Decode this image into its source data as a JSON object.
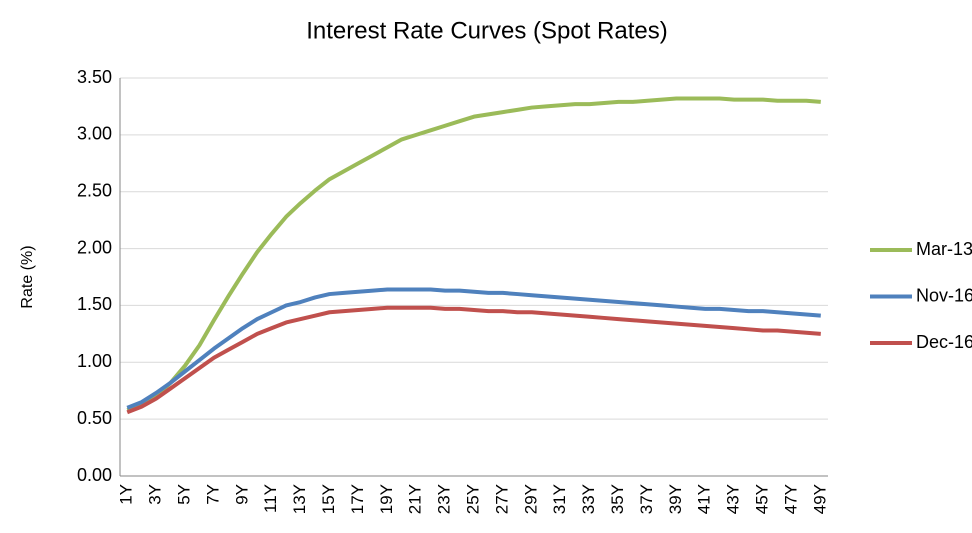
{
  "chart_data": {
    "type": "line",
    "title": "Interest Rate Curves (Spot Rates)",
    "y_label": "Rate (%)",
    "categories": [
      "1Y",
      null,
      "3Y",
      null,
      "5Y",
      null,
      "7Y",
      null,
      "9Y",
      null,
      "11Y",
      null,
      "13Y",
      null,
      "15Y",
      null,
      "17Y",
      null,
      "19Y",
      null,
      "21Y",
      null,
      "23Y",
      null,
      "25Y",
      null,
      "27Y",
      null,
      "29Y",
      null,
      "31Y",
      null,
      "33Y",
      null,
      "35Y",
      null,
      "37Y",
      null,
      "39Y",
      null,
      "41Y",
      null,
      "43Y",
      null,
      "45Y",
      null,
      "47Y",
      null,
      "49Y"
    ],
    "series": [
      {
        "name": "Mar-13",
        "color": "#9bbb59",
        "values": [
          0.58,
          0.62,
          0.7,
          0.82,
          0.97,
          1.15,
          1.37,
          1.58,
          1.78,
          1.97,
          2.13,
          2.28,
          2.4,
          2.51,
          2.61,
          2.68,
          2.75,
          2.82,
          2.89,
          2.96,
          3.0,
          3.04,
          3.08,
          3.12,
          3.16,
          3.18,
          3.2,
          3.22,
          3.24,
          3.25,
          3.26,
          3.27,
          3.27,
          3.28,
          3.29,
          3.29,
          3.3,
          3.31,
          3.32,
          3.32,
          3.32,
          3.32,
          3.31,
          3.31,
          3.31,
          3.3,
          3.3,
          3.3,
          3.29
        ]
      },
      {
        "name": "Nov-16",
        "color": "#4f81bd",
        "values": [
          0.6,
          0.65,
          0.73,
          0.82,
          0.92,
          1.02,
          1.12,
          1.21,
          1.3,
          1.38,
          1.44,
          1.5,
          1.53,
          1.57,
          1.6,
          1.61,
          1.62,
          1.63,
          1.64,
          1.64,
          1.64,
          1.64,
          1.63,
          1.63,
          1.62,
          1.61,
          1.61,
          1.6,
          1.59,
          1.58,
          1.57,
          1.56,
          1.55,
          1.54,
          1.53,
          1.52,
          1.51,
          1.5,
          1.49,
          1.48,
          1.47,
          1.47,
          1.46,
          1.45,
          1.45,
          1.44,
          1.43,
          1.42,
          1.41
        ]
      },
      {
        "name": "Dec-16",
        "color": "#c0504d",
        "values": [
          0.56,
          0.61,
          0.68,
          0.77,
          0.86,
          0.95,
          1.04,
          1.11,
          1.18,
          1.25,
          1.3,
          1.35,
          1.38,
          1.41,
          1.44,
          1.45,
          1.46,
          1.47,
          1.48,
          1.48,
          1.48,
          1.48,
          1.47,
          1.47,
          1.46,
          1.45,
          1.45,
          1.44,
          1.44,
          1.43,
          1.42,
          1.41,
          1.4,
          1.39,
          1.38,
          1.37,
          1.36,
          1.35,
          1.34,
          1.33,
          1.32,
          1.31,
          1.3,
          1.29,
          1.28,
          1.28,
          1.27,
          1.26,
          1.25
        ]
      }
    ],
    "ylim": [
      0,
      3.5
    ],
    "yticks": [
      {
        "value": 0,
        "label": "0.00"
      },
      {
        "value": 0.5,
        "label": "0.50"
      },
      {
        "value": 1,
        "label": "1.00"
      },
      {
        "value": 1.5,
        "label": "1.50"
      },
      {
        "value": 2,
        "label": "2.00"
      },
      {
        "value": 2.5,
        "label": "2.50"
      },
      {
        "value": 3,
        "label": "3.00"
      },
      {
        "value": 3.5,
        "label": "3.50"
      }
    ],
    "grid": true,
    "legend": "right"
  }
}
